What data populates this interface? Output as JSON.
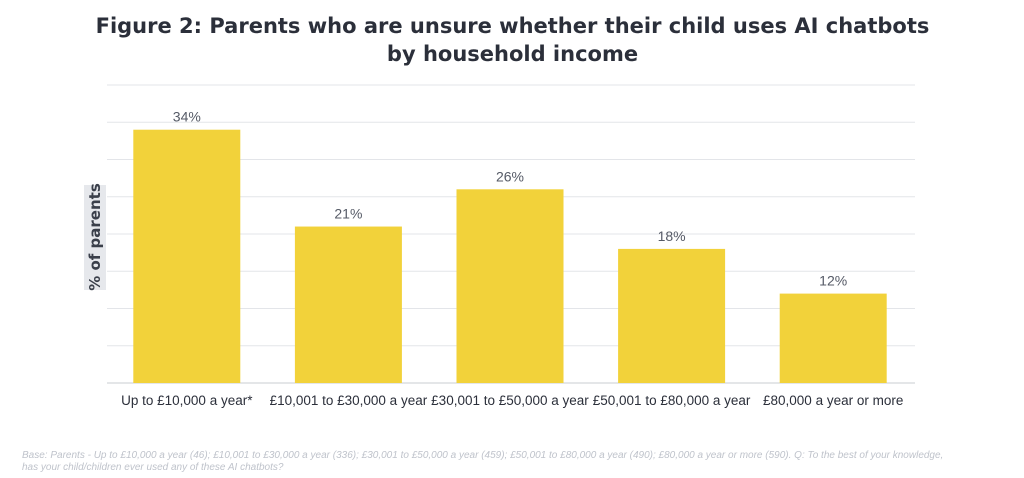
{
  "chart_data": {
    "type": "bar",
    "title": "Figure 2: Parents who are unsure whether their child uses AI chatbots by household income",
    "xlabel": "",
    "ylabel": "% of parents",
    "categories": [
      "Up to £10,000 a year*",
      "£10,001 to £30,000 a year",
      "£30,001 to £50,000 a year",
      "£50,001 to £80,000 a year",
      "£80,000 a year or more"
    ],
    "values": [
      34,
      21,
      26,
      18,
      12
    ],
    "value_labels": [
      "34%",
      "21%",
      "26%",
      "18%",
      "12%"
    ],
    "ylim": [
      0,
      40
    ],
    "grid": true,
    "bar_color": "#f2d23a"
  },
  "footnote": "Base: Parents - Up to £10,000 a year (46); £10,001 to £30,000 a year (336); £30,001 to £50,000 a year (459); £50,001 to £80,000 a year (490); £80,000 a year or more (590). Q: To the best of your knowledge, has your child/children ever used any of these AI chatbots?"
}
